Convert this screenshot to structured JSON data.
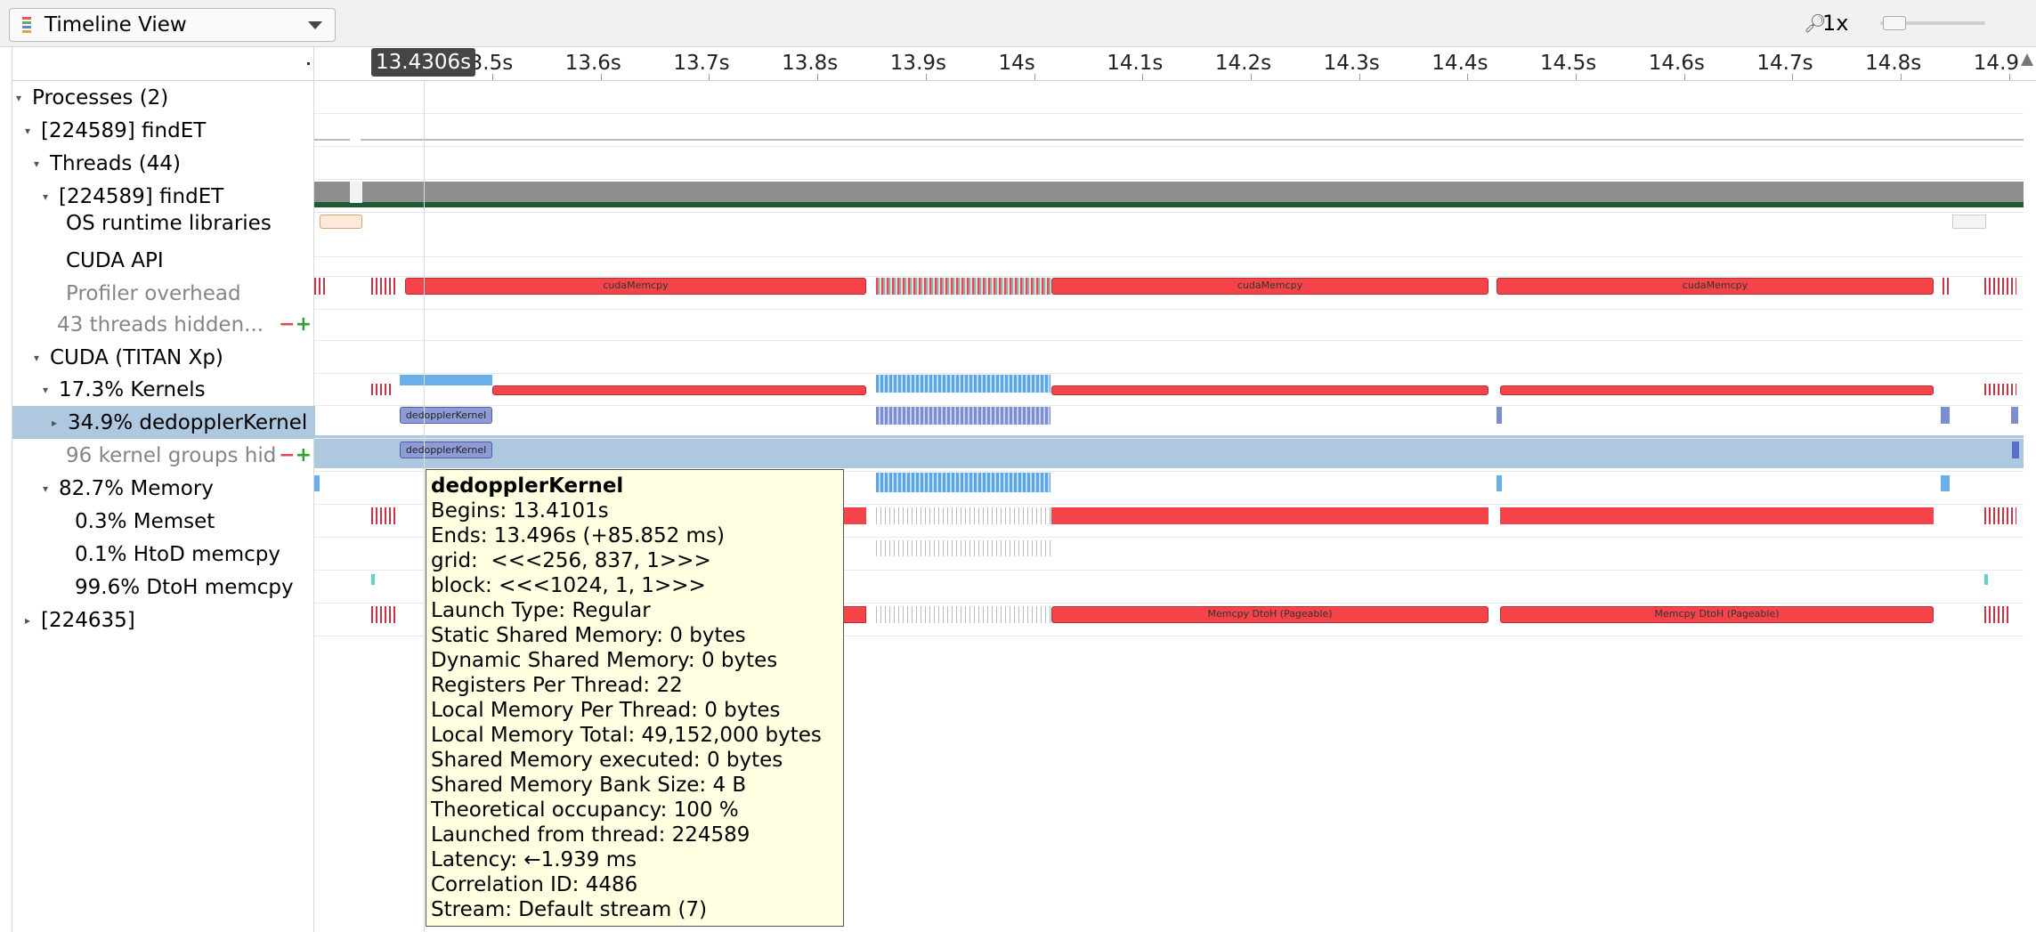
{
  "toolbar": {
    "view_label": "Timeline View",
    "zoom_label": "1x",
    "icon_view": "timeline-view-icon",
    "icon_zoom": "magnifier-icon"
  },
  "cursor_time": "13.4306s",
  "ruler_ticks": [
    "13.5s",
    "13.6s",
    "13.7s",
    "13.8s",
    "13.9s",
    "14s",
    "14.1s",
    "14.2s",
    "14.3s",
    "14.4s",
    "14.5s",
    "14.6s",
    "14.7s",
    "14.8s",
    "14.9"
  ],
  "tree": [
    {
      "label": "Processes (2)",
      "twisty": "open",
      "muted": false
    },
    {
      "label": "[224589] findET",
      "twisty": "open",
      "muted": false
    },
    {
      "label": "Threads (44)",
      "twisty": "open",
      "muted": false
    },
    {
      "label": "[224589] findET",
      "twisty": "open",
      "muted": false
    },
    {
      "label": "OS runtime libraries",
      "twisty": "none",
      "muted": false
    },
    {
      "label": "CUDA API",
      "twisty": "none",
      "muted": false
    },
    {
      "label": "Profiler overhead",
      "twisty": "none",
      "muted": true
    },
    {
      "label": "43 threads hidden...",
      "twisty": "none",
      "muted": true
    },
    {
      "label": "CUDA (TITAN Xp)",
      "twisty": "open",
      "muted": false
    },
    {
      "label": "17.3% Kernels",
      "twisty": "open",
      "muted": false
    },
    {
      "label": "34.9% dedopplerKernel",
      "twisty": "closed",
      "muted": false
    },
    {
      "label": "96 kernel groups hid",
      "twisty": "none",
      "muted": true
    },
    {
      "label": "82.7% Memory",
      "twisty": "open",
      "muted": false
    },
    {
      "label": "0.3% Memset",
      "twisty": "none",
      "muted": false
    },
    {
      "label": "0.1% HtoD memcpy",
      "twisty": "none",
      "muted": false
    },
    {
      "label": "99.6% DtoH memcpy",
      "twisty": "none",
      "muted": false
    },
    {
      "label": "[224635]",
      "twisty": "closed",
      "muted": false
    }
  ],
  "bar_labels": {
    "cuda_memcpy": "cudaMemcpy",
    "kernel": "dedopplerKernel",
    "memcpy_dtoh": "Memcpy DtoH (Pageable)"
  },
  "tooltip": {
    "title": "dedopplerKernel",
    "lines": [
      "Begins: 13.4101s",
      "Ends: 13.496s (+85.852 ms)",
      "grid:  <<<256, 837, 1>>>",
      "block: <<<1024, 1, 1>>>",
      "Launch Type: Regular",
      "Static Shared Memory: 0 bytes",
      "Dynamic Shared Memory: 0 bytes",
      "Registers Per Thread: 22",
      "Local Memory Per Thread: 0 bytes",
      "Local Memory Total: 49,152,000 bytes",
      "Shared Memory executed: 0 bytes",
      "Shared Memory Bank Size: 4 B",
      "Theoretical occupancy: 100 %",
      "Launched from thread: 224589",
      "Latency: ←1.939 ms",
      "Correlation ID: 4486",
      "Stream: Default stream (7)"
    ]
  },
  "colors": {
    "memcpy_red": "#f4444a",
    "compute_blue": "#6aaeea",
    "kernel_blue": "#8d9bd6",
    "selection": "#aec8e0",
    "tooltip_bg": "#ffffe1"
  }
}
